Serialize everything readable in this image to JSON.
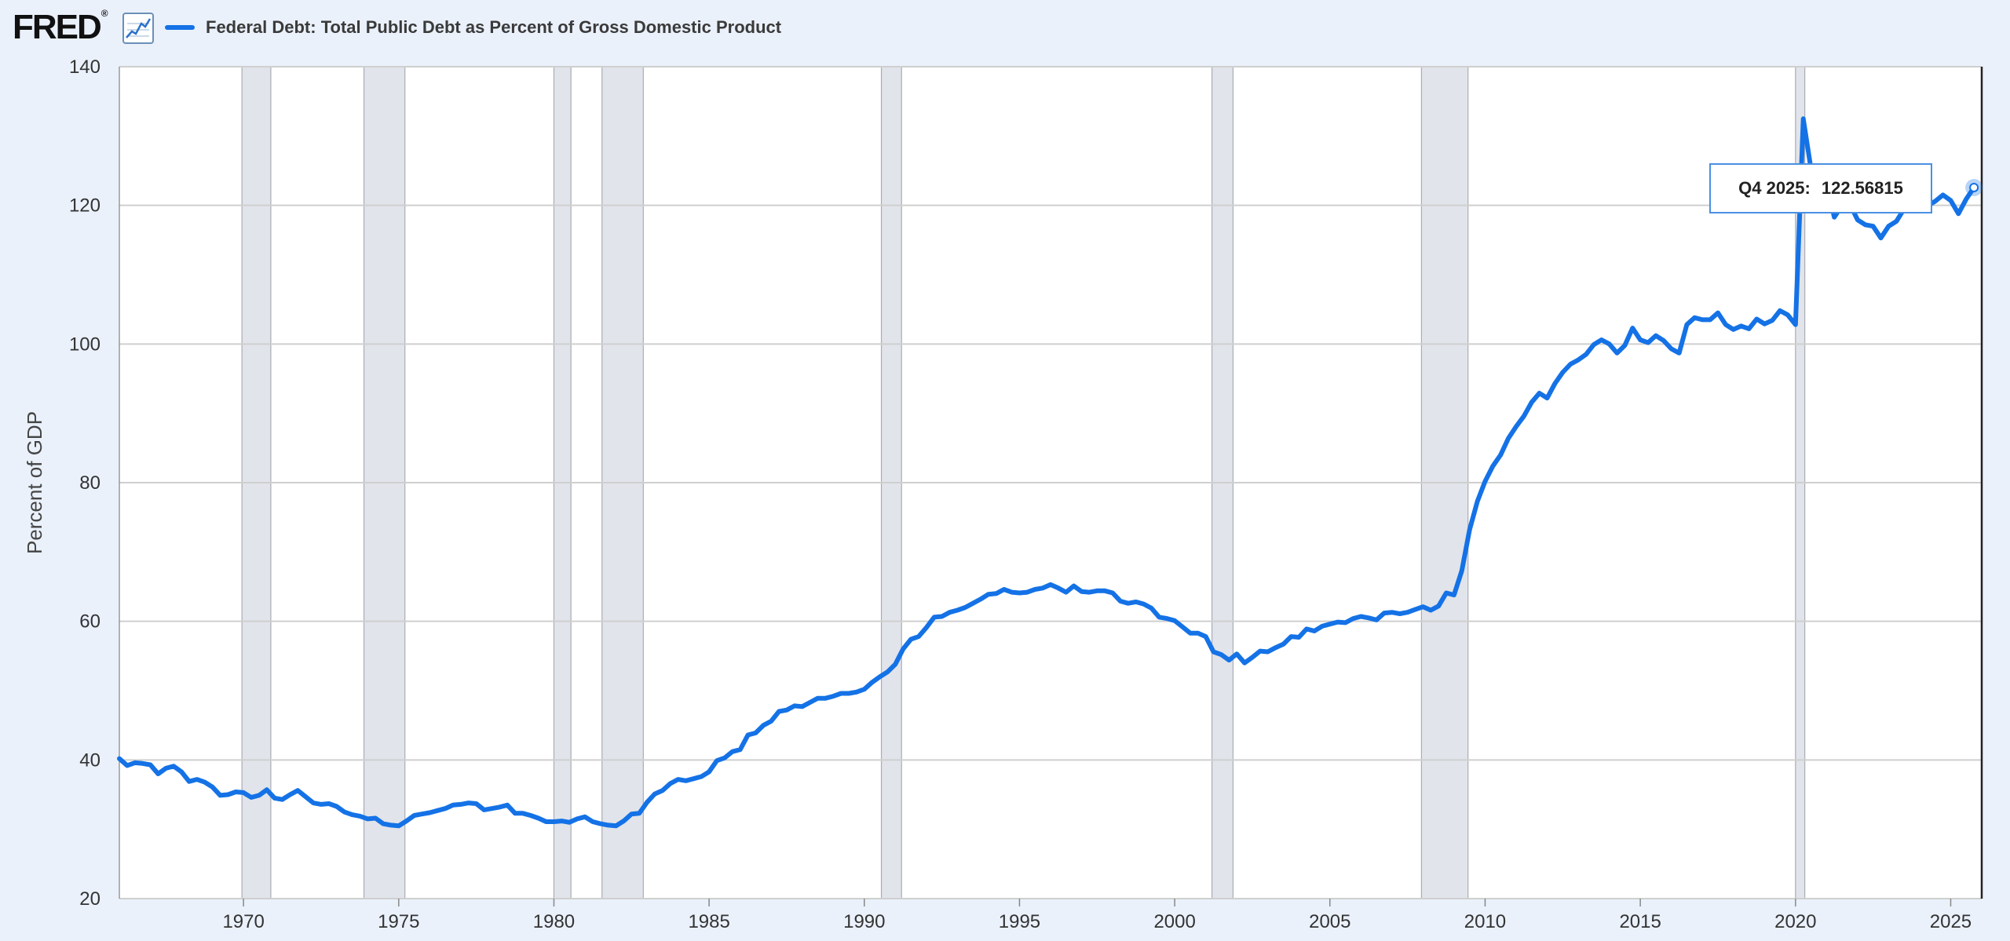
{
  "header": {
    "logo_text": "FRED",
    "logo_mark": "®",
    "graph_icon": "line-graph-icon"
  },
  "colors": {
    "series": "#1472e6",
    "recession": "#e1e4ea",
    "background": "#eaf1fb",
    "plot_background": "#ffffff",
    "grid": "#cfcfcf"
  },
  "tooltip": {
    "period": "Q4 2025:",
    "value": "122.56815"
  },
  "chart_data": {
    "type": "line",
    "title": "",
    "xlabel": "",
    "ylabel": "Percent of GDP",
    "xlim": [
      1966.0,
      2026.0
    ],
    "ylim": [
      20,
      140
    ],
    "yticks": [
      20,
      40,
      60,
      80,
      100,
      120,
      140
    ],
    "xticks": [
      1970,
      1975,
      1980,
      1985,
      1990,
      1995,
      2000,
      2005,
      2010,
      2015,
      2020,
      2025
    ],
    "grid": true,
    "legend_position": "top-left",
    "recessions": [
      [
        1969.95,
        1970.88
      ],
      [
        1973.88,
        1975.2
      ],
      [
        1980.0,
        1980.55
      ],
      [
        1981.55,
        1982.88
      ],
      [
        1990.55,
        1991.2
      ],
      [
        2001.2,
        2001.88
      ],
      [
        2007.95,
        2009.45
      ],
      [
        2020.0,
        2020.3
      ]
    ],
    "series": [
      {
        "name": "Federal Debt: Total Public Debt as Percent of Gross Domestic Product",
        "points": [
          [
            1966.0,
            40.2
          ],
          [
            1966.25,
            39.2
          ],
          [
            1966.5,
            39.6
          ],
          [
            1966.75,
            39.5
          ],
          [
            1967.0,
            39.3
          ],
          [
            1967.25,
            38.0
          ],
          [
            1967.5,
            38.8
          ],
          [
            1967.75,
            39.1
          ],
          [
            1968.0,
            38.3
          ],
          [
            1968.25,
            36.9
          ],
          [
            1968.5,
            37.2
          ],
          [
            1968.75,
            36.8
          ],
          [
            1969.0,
            36.1
          ],
          [
            1969.25,
            34.9
          ],
          [
            1969.5,
            35.0
          ],
          [
            1969.75,
            35.4
          ],
          [
            1970.0,
            35.3
          ],
          [
            1970.25,
            34.6
          ],
          [
            1970.5,
            34.9
          ],
          [
            1970.75,
            35.7
          ],
          [
            1971.0,
            34.5
          ],
          [
            1971.25,
            34.3
          ],
          [
            1971.5,
            35.0
          ],
          [
            1971.75,
            35.6
          ],
          [
            1972.0,
            34.7
          ],
          [
            1972.25,
            33.8
          ],
          [
            1972.5,
            33.6
          ],
          [
            1972.75,
            33.7
          ],
          [
            1973.0,
            33.3
          ],
          [
            1973.25,
            32.5
          ],
          [
            1973.5,
            32.1
          ],
          [
            1973.75,
            31.9
          ],
          [
            1974.0,
            31.5
          ],
          [
            1974.25,
            31.6
          ],
          [
            1974.5,
            30.8
          ],
          [
            1974.75,
            30.6
          ],
          [
            1975.0,
            30.5
          ],
          [
            1975.25,
            31.2
          ],
          [
            1975.5,
            32.0
          ],
          [
            1975.75,
            32.2
          ],
          [
            1976.0,
            32.4
          ],
          [
            1976.25,
            32.7
          ],
          [
            1976.5,
            33.0
          ],
          [
            1976.75,
            33.5
          ],
          [
            1977.0,
            33.6
          ],
          [
            1977.25,
            33.8
          ],
          [
            1977.5,
            33.7
          ],
          [
            1977.75,
            32.8
          ],
          [
            1978.0,
            33.0
          ],
          [
            1978.25,
            33.2
          ],
          [
            1978.5,
            33.5
          ],
          [
            1978.75,
            32.3
          ],
          [
            1979.0,
            32.3
          ],
          [
            1979.25,
            32.0
          ],
          [
            1979.5,
            31.6
          ],
          [
            1979.75,
            31.1
          ],
          [
            1980.0,
            31.1
          ],
          [
            1980.25,
            31.2
          ],
          [
            1980.5,
            31.0
          ],
          [
            1980.75,
            31.5
          ],
          [
            1981.0,
            31.8
          ],
          [
            1981.25,
            31.1
          ],
          [
            1981.5,
            30.8
          ],
          [
            1981.75,
            30.6
          ],
          [
            1982.0,
            30.5
          ],
          [
            1982.25,
            31.2
          ],
          [
            1982.5,
            32.2
          ],
          [
            1982.75,
            32.3
          ],
          [
            1983.0,
            33.9
          ],
          [
            1983.25,
            35.1
          ],
          [
            1983.5,
            35.6
          ],
          [
            1983.75,
            36.6
          ],
          [
            1984.0,
            37.2
          ],
          [
            1984.25,
            37.0
          ],
          [
            1984.5,
            37.3
          ],
          [
            1984.75,
            37.6
          ],
          [
            1985.0,
            38.3
          ],
          [
            1985.25,
            39.9
          ],
          [
            1985.5,
            40.3
          ],
          [
            1985.75,
            41.2
          ],
          [
            1986.0,
            41.5
          ],
          [
            1986.25,
            43.6
          ],
          [
            1986.5,
            43.9
          ],
          [
            1986.75,
            45.0
          ],
          [
            1987.0,
            45.6
          ],
          [
            1987.25,
            47.0
          ],
          [
            1987.5,
            47.2
          ],
          [
            1987.75,
            47.8
          ],
          [
            1988.0,
            47.7
          ],
          [
            1988.25,
            48.3
          ],
          [
            1988.5,
            48.9
          ],
          [
            1988.75,
            48.9
          ],
          [
            1989.0,
            49.2
          ],
          [
            1989.25,
            49.6
          ],
          [
            1989.5,
            49.6
          ],
          [
            1989.75,
            49.8
          ],
          [
            1990.0,
            50.2
          ],
          [
            1990.25,
            51.2
          ],
          [
            1990.5,
            52.0
          ],
          [
            1990.75,
            52.7
          ],
          [
            1991.0,
            53.8
          ],
          [
            1991.25,
            56.0
          ],
          [
            1991.5,
            57.4
          ],
          [
            1991.75,
            57.8
          ],
          [
            1992.0,
            59.1
          ],
          [
            1992.25,
            60.6
          ],
          [
            1992.5,
            60.7
          ],
          [
            1992.75,
            61.3
          ],
          [
            1993.0,
            61.6
          ],
          [
            1993.25,
            62.0
          ],
          [
            1993.5,
            62.6
          ],
          [
            1993.75,
            63.2
          ],
          [
            1994.0,
            63.9
          ],
          [
            1994.25,
            64.0
          ],
          [
            1994.5,
            64.6
          ],
          [
            1994.75,
            64.2
          ],
          [
            1995.0,
            64.1
          ],
          [
            1995.25,
            64.2
          ],
          [
            1995.5,
            64.6
          ],
          [
            1995.75,
            64.8
          ],
          [
            1996.0,
            65.3
          ],
          [
            1996.25,
            64.8
          ],
          [
            1996.5,
            64.2
          ],
          [
            1996.75,
            65.1
          ],
          [
            1997.0,
            64.3
          ],
          [
            1997.25,
            64.2
          ],
          [
            1997.5,
            64.4
          ],
          [
            1997.75,
            64.4
          ],
          [
            1998.0,
            64.1
          ],
          [
            1998.25,
            62.9
          ],
          [
            1998.5,
            62.6
          ],
          [
            1998.75,
            62.8
          ],
          [
            1999.0,
            62.5
          ],
          [
            1999.25,
            61.9
          ],
          [
            1999.5,
            60.6
          ],
          [
            1999.75,
            60.4
          ],
          [
            2000.0,
            60.1
          ],
          [
            2000.25,
            59.2
          ],
          [
            2000.5,
            58.3
          ],
          [
            2000.75,
            58.3
          ],
          [
            2001.0,
            57.8
          ],
          [
            2001.25,
            55.6
          ],
          [
            2001.5,
            55.2
          ],
          [
            2001.75,
            54.4
          ],
          [
            2002.0,
            55.3
          ],
          [
            2002.25,
            54.0
          ],
          [
            2002.5,
            54.8
          ],
          [
            2002.75,
            55.7
          ],
          [
            2003.0,
            55.6
          ],
          [
            2003.25,
            56.2
          ],
          [
            2003.5,
            56.7
          ],
          [
            2003.75,
            57.8
          ],
          [
            2004.0,
            57.7
          ],
          [
            2004.25,
            58.9
          ],
          [
            2004.5,
            58.6
          ],
          [
            2004.75,
            59.3
          ],
          [
            2005.0,
            59.6
          ],
          [
            2005.25,
            59.9
          ],
          [
            2005.5,
            59.8
          ],
          [
            2005.75,
            60.4
          ],
          [
            2006.0,
            60.7
          ],
          [
            2006.25,
            60.5
          ],
          [
            2006.5,
            60.2
          ],
          [
            2006.75,
            61.2
          ],
          [
            2007.0,
            61.3
          ],
          [
            2007.25,
            61.1
          ],
          [
            2007.5,
            61.3
          ],
          [
            2007.75,
            61.7
          ],
          [
            2008.0,
            62.1
          ],
          [
            2008.25,
            61.6
          ],
          [
            2008.5,
            62.2
          ],
          [
            2008.75,
            64.1
          ],
          [
            2009.0,
            63.8
          ],
          [
            2009.25,
            67.3
          ],
          [
            2009.5,
            73.2
          ],
          [
            2009.75,
            77.3
          ],
          [
            2010.0,
            80.2
          ],
          [
            2010.25,
            82.4
          ],
          [
            2010.5,
            84.0
          ],
          [
            2010.75,
            86.4
          ],
          [
            2011.0,
            88.1
          ],
          [
            2011.25,
            89.6
          ],
          [
            2011.5,
            91.6
          ],
          [
            2011.75,
            92.9
          ],
          [
            2012.0,
            92.2
          ],
          [
            2012.25,
            94.3
          ],
          [
            2012.5,
            95.9
          ],
          [
            2012.75,
            97.1
          ],
          [
            2013.0,
            97.7
          ],
          [
            2013.25,
            98.5
          ],
          [
            2013.5,
            99.9
          ],
          [
            2013.75,
            100.6
          ],
          [
            2014.0,
            100.0
          ],
          [
            2014.25,
            98.7
          ],
          [
            2014.5,
            99.8
          ],
          [
            2014.75,
            102.3
          ],
          [
            2015.0,
            100.6
          ],
          [
            2015.25,
            100.2
          ],
          [
            2015.5,
            101.2
          ],
          [
            2015.75,
            100.5
          ],
          [
            2016.0,
            99.3
          ],
          [
            2016.25,
            98.7
          ],
          [
            2016.5,
            102.8
          ],
          [
            2016.75,
            103.8
          ],
          [
            2017.0,
            103.5
          ],
          [
            2017.25,
            103.5
          ],
          [
            2017.5,
            104.5
          ],
          [
            2017.75,
            102.8
          ],
          [
            2018.0,
            102.1
          ],
          [
            2018.25,
            102.6
          ],
          [
            2018.5,
            102.2
          ],
          [
            2018.75,
            103.6
          ],
          [
            2019.0,
            102.9
          ],
          [
            2019.25,
            103.4
          ],
          [
            2019.5,
            104.8
          ],
          [
            2019.75,
            104.2
          ],
          [
            2020.0,
            102.8
          ],
          [
            2020.25,
            132.5
          ],
          [
            2020.5,
            125.2
          ],
          [
            2020.75,
            125.4
          ],
          [
            2021.0,
            123.2
          ],
          [
            2021.25,
            118.3
          ],
          [
            2021.5,
            120.0
          ],
          [
            2021.75,
            120.2
          ],
          [
            2022.0,
            117.9
          ],
          [
            2022.25,
            117.2
          ],
          [
            2022.5,
            117.0
          ],
          [
            2022.75,
            115.3
          ],
          [
            2023.0,
            117.0
          ],
          [
            2023.25,
            117.7
          ],
          [
            2023.5,
            119.5
          ],
          [
            2023.75,
            120.5
          ],
          [
            2024.0,
            120.7
          ],
          [
            2024.25,
            119.9
          ],
          [
            2024.5,
            120.6
          ],
          [
            2024.75,
            121.5
          ],
          [
            2025.0,
            120.7
          ],
          [
            2025.25,
            118.8
          ],
          [
            2025.5,
            120.9
          ],
          [
            2025.75,
            122.56815
          ]
        ]
      }
    ]
  }
}
